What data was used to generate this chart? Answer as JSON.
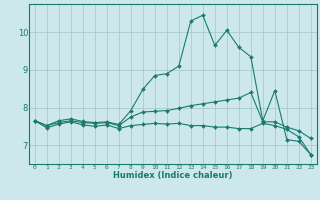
{
  "xlabel": "Humidex (Indice chaleur)",
  "bg_color": "#cce8ec",
  "grid_color": "#aacccc",
  "line_color": "#1a7a6e",
  "spine_color": "#1a7a6e",
  "xlim": [
    -0.5,
    23.5
  ],
  "ylim": [
    6.5,
    10.75
  ],
  "xticks": [
    0,
    1,
    2,
    3,
    4,
    5,
    6,
    7,
    8,
    9,
    10,
    11,
    12,
    13,
    14,
    15,
    16,
    17,
    18,
    19,
    20,
    21,
    22,
    23
  ],
  "yticks": [
    7,
    8,
    9,
    10
  ],
  "line1_x": [
    0,
    1,
    2,
    3,
    4,
    5,
    6,
    7,
    8,
    9,
    10,
    11,
    12,
    13,
    14,
    15,
    16,
    17,
    18,
    19,
    20,
    21,
    22,
    23
  ],
  "line1_y": [
    7.65,
    7.52,
    7.65,
    7.7,
    7.63,
    7.6,
    7.62,
    7.55,
    7.92,
    8.48,
    8.85,
    8.9,
    9.1,
    10.3,
    10.45,
    9.65,
    10.05,
    9.6,
    9.35,
    7.65,
    8.45,
    7.15,
    7.1,
    6.75
  ],
  "line2_x": [
    0,
    1,
    2,
    3,
    4,
    5,
    6,
    7,
    8,
    9,
    10,
    11,
    12,
    13,
    14,
    15,
    16,
    17,
    18,
    19,
    20,
    21,
    22,
    23
  ],
  "line2_y": [
    7.65,
    7.52,
    7.6,
    7.65,
    7.6,
    7.58,
    7.6,
    7.52,
    7.75,
    7.88,
    7.9,
    7.92,
    7.98,
    8.05,
    8.1,
    8.15,
    8.2,
    8.25,
    8.4,
    7.62,
    7.62,
    7.48,
    7.38,
    7.18
  ],
  "line3_x": [
    0,
    1,
    2,
    3,
    4,
    5,
    6,
    7,
    8,
    9,
    10,
    11,
    12,
    13,
    14,
    15,
    16,
    17,
    18,
    19,
    20,
    21,
    22,
    23
  ],
  "line3_y": [
    7.65,
    7.46,
    7.56,
    7.62,
    7.54,
    7.5,
    7.54,
    7.44,
    7.52,
    7.55,
    7.58,
    7.56,
    7.58,
    7.52,
    7.52,
    7.48,
    7.48,
    7.44,
    7.44,
    7.58,
    7.52,
    7.42,
    7.22,
    6.75
  ]
}
